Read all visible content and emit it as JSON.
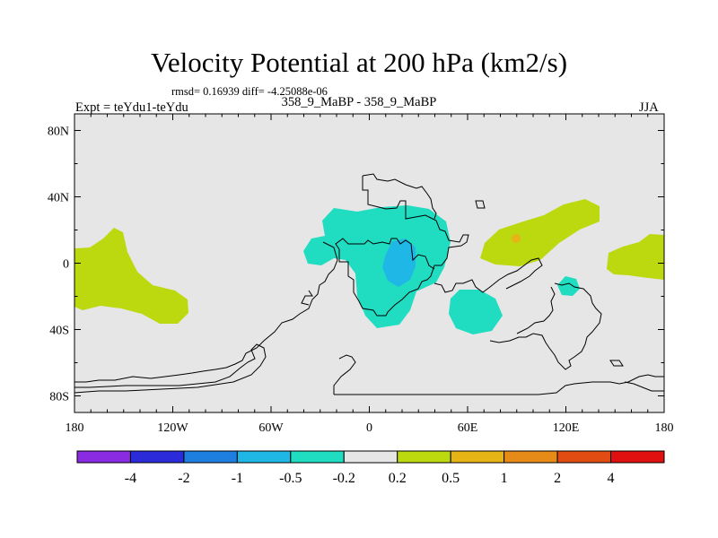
{
  "chart_data": {
    "type": "contour_map",
    "title": "Velocity Potential at 200 hPa (km2/s)",
    "stats_text": "rmsd= 0.16939 diff= -4.25088e-06",
    "left_label": "Expt = teYdu1-teYdu",
    "center_label": "358_9_MaBP - 358_9_MaBP",
    "right_label": "JJA",
    "x_axis": {
      "range": [
        -180,
        180
      ],
      "tick_values": [
        -180,
        -120,
        -60,
        0,
        60,
        120,
        180
      ],
      "tick_labels": [
        "180",
        "120W",
        "60W",
        "0",
        "60E",
        "120E",
        "180"
      ]
    },
    "y_axis": {
      "range": [
        -90,
        90
      ],
      "tick_values": [
        80,
        40,
        0,
        -40,
        -80
      ],
      "tick_labels": [
        "80N",
        "40N",
        "0",
        "40S",
        "80S"
      ]
    },
    "colorbar": {
      "levels": [
        "-4",
        "-2",
        "-1",
        "-0.5",
        "-0.2",
        "0.2",
        "0.5",
        "1",
        "2",
        "4"
      ],
      "colors": [
        "#8a2be2",
        "#2b2bd9",
        "#1e7fe0",
        "#1fb7e6",
        "#20dcc1",
        "#e6e6e6",
        "#bcd80f",
        "#e6b414",
        "#e68a18",
        "#e04c12",
        "#e01010"
      ]
    },
    "regions": [
      {
        "name": "central-pacific-positive",
        "level": "0.2 to 0.5",
        "lon": -160,
        "lat": 0
      },
      {
        "name": "maritime-asia-positive",
        "level": "0.2 to 0.5",
        "lon": 105,
        "lat": 22
      },
      {
        "name": "asia-peak",
        "level": "0.5 to 1",
        "lon": 89,
        "lat": 15
      },
      {
        "name": "east-pacific-positive",
        "level": "0.2 to 0.5",
        "lon": 168,
        "lat": 10
      },
      {
        "name": "africa-atlantic-negative",
        "level": "-0.5 to -0.2",
        "lon": 20,
        "lat": 5
      },
      {
        "name": "africa-core-negative",
        "level": "-1 to -0.5",
        "lon": 25,
        "lat": 0
      },
      {
        "name": "indian-ocean-negative",
        "level": "-0.5 to -0.2",
        "lon": 65,
        "lat": -25
      },
      {
        "name": "east-indian-negative",
        "level": "-0.5 to -0.2",
        "lon": 122,
        "lat": -13
      }
    ]
  }
}
